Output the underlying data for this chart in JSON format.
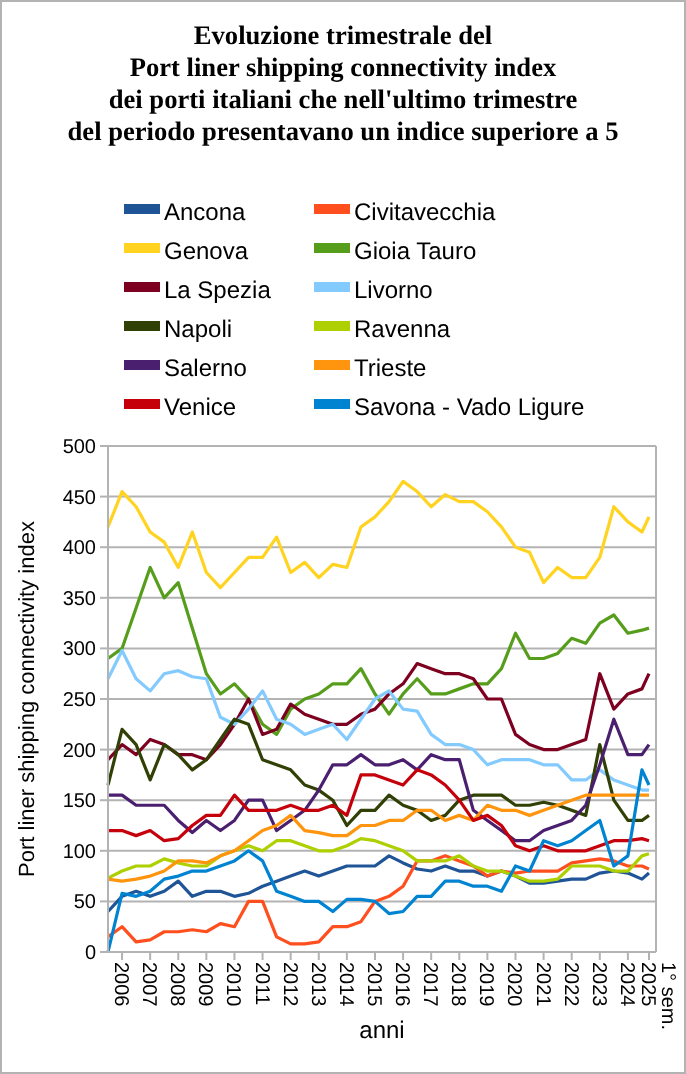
{
  "chart_data": {
    "type": "line",
    "title": "Evoluzione trimestrale del\nPort liner shipping connectivity index\ndei porti italiani che nell'ultimo trimestre\ndel periodo presentavano un indice superiore a 5",
    "xlabel": "anni",
    "ylabel": "Port liner shipping connectivity index",
    "x": [
      2006,
      2006.5,
      2007,
      2007.5,
      2008,
      2008.5,
      2009,
      2009.5,
      2010,
      2010.5,
      2011,
      2011.5,
      2012,
      2012.5,
      2013,
      2013.5,
      2014,
      2014.5,
      2015,
      2015.5,
      2016,
      2016.5,
      2017,
      2017.5,
      2018,
      2018.5,
      2019,
      2019.5,
      2020,
      2020.5,
      2021,
      2021.5,
      2022,
      2022.5,
      2023,
      2023.5,
      2024,
      2024.5,
      2025,
      2025.25
    ],
    "xlim": [
      2006,
      2025.5
    ],
    "xticks": [
      {
        "value": 2006.5,
        "label": "2006"
      },
      {
        "value": 2007.5,
        "label": "2007"
      },
      {
        "value": 2008.5,
        "label": "2008"
      },
      {
        "value": 2009.5,
        "label": "2009"
      },
      {
        "value": 2010.5,
        "label": "2010"
      },
      {
        "value": 2011.5,
        "label": "2011"
      },
      {
        "value": 2012.5,
        "label": "2012"
      },
      {
        "value": 2013.5,
        "label": "2013"
      },
      {
        "value": 2014.5,
        "label": "2014"
      },
      {
        "value": 2015.5,
        "label": "2015"
      },
      {
        "value": 2016.5,
        "label": "2016"
      },
      {
        "value": 2017.5,
        "label": "2017"
      },
      {
        "value": 2018.5,
        "label": "2018"
      },
      {
        "value": 2019.5,
        "label": "2019"
      },
      {
        "value": 2020.5,
        "label": "2020"
      },
      {
        "value": 2021.5,
        "label": "2021"
      },
      {
        "value": 2022.5,
        "label": "2022"
      },
      {
        "value": 2023.5,
        "label": "2023"
      },
      {
        "value": 2024.5,
        "label": "2024"
      },
      {
        "value": 2025.25,
        "label": "1° sem. 2025"
      }
    ],
    "ylim": [
      0,
      500
    ],
    "yticks": [
      0,
      50,
      100,
      150,
      200,
      250,
      300,
      350,
      400,
      450,
      500
    ],
    "grid": "y",
    "legend": "top",
    "series": [
      {
        "name": "Ancona",
        "color": "#1f5597",
        "values": [
          40,
          55,
          60,
          55,
          60,
          70,
          55,
          60,
          60,
          55,
          58,
          65,
          70,
          75,
          80,
          75,
          80,
          85,
          85,
          85,
          95,
          88,
          82,
          80,
          85,
          80,
          80,
          75,
          80,
          75,
          68,
          68,
          70,
          72,
          72,
          78,
          80,
          78,
          72,
          78
        ]
      },
      {
        "name": "Civitavecchia",
        "color": "#ff4f1f",
        "values": [
          15,
          25,
          10,
          12,
          20,
          20,
          22,
          20,
          28,
          25,
          50,
          50,
          15,
          8,
          8,
          10,
          25,
          25,
          30,
          50,
          55,
          65,
          90,
          90,
          95,
          90,
          85,
          75,
          80,
          78,
          80,
          80,
          80,
          88,
          90,
          92,
          90,
          85,
          85,
          82
        ]
      },
      {
        "name": "Genova",
        "color": "#ffd320",
        "values": [
          420,
          455,
          440,
          415,
          405,
          380,
          415,
          375,
          360,
          375,
          390,
          390,
          410,
          375,
          385,
          370,
          383,
          380,
          420,
          430,
          445,
          465,
          455,
          440,
          452,
          445,
          445,
          435,
          420,
          400,
          395,
          365,
          380,
          370,
          370,
          390,
          440,
          425,
          415,
          430
        ]
      },
      {
        "name": "Gioia Tauro",
        "color": "#579d1c",
        "values": [
          290,
          300,
          340,
          380,
          350,
          365,
          320,
          275,
          255,
          265,
          250,
          225,
          215,
          240,
          250,
          255,
          265,
          265,
          280,
          255,
          235,
          255,
          270,
          255,
          255,
          260,
          265,
          265,
          280,
          315,
          290,
          290,
          295,
          310,
          305,
          325,
          333,
          315,
          318,
          320
        ]
      },
      {
        "name": "La Spezia",
        "color": "#7e0021",
        "values": [
          190,
          205,
          195,
          210,
          205,
          195,
          195,
          190,
          205,
          225,
          250,
          215,
          220,
          245,
          235,
          230,
          225,
          225,
          235,
          240,
          255,
          265,
          285,
          280,
          275,
          275,
          270,
          250,
          250,
          215,
          205,
          200,
          200,
          205,
          210,
          275,
          240,
          255,
          260,
          275
        ]
      },
      {
        "name": "Livorno",
        "color": "#83caff",
        "values": [
          270,
          298,
          270,
          258,
          275,
          278,
          272,
          270,
          232,
          225,
          240,
          258,
          230,
          225,
          215,
          220,
          225,
          210,
          230,
          250,
          258,
          240,
          238,
          215,
          205,
          205,
          200,
          185,
          190,
          190,
          190,
          185,
          185,
          170,
          170,
          180,
          170,
          165,
          160,
          160
        ]
      },
      {
        "name": "Napoli",
        "color": "#314004",
        "values": [
          165,
          220,
          205,
          170,
          205,
          195,
          180,
          190,
          210,
          230,
          225,
          190,
          185,
          180,
          165,
          160,
          150,
          125,
          140,
          140,
          155,
          145,
          140,
          130,
          135,
          150,
          155,
          155,
          155,
          145,
          145,
          148,
          145,
          140,
          135,
          205,
          150,
          130,
          130,
          135
        ]
      },
      {
        "name": "Ravenna",
        "color": "#aecf00",
        "values": [
          73,
          80,
          85,
          85,
          92,
          88,
          85,
          85,
          95,
          100,
          105,
          100,
          110,
          110,
          105,
          100,
          100,
          105,
          112,
          110,
          105,
          100,
          90,
          90,
          90,
          95,
          85,
          80,
          80,
          75,
          70,
          70,
          72,
          85,
          85,
          85,
          80,
          80,
          95,
          97
        ]
      },
      {
        "name": "Salerno",
        "color": "#4b1f6f",
        "values": [
          155,
          155,
          145,
          145,
          145,
          130,
          118,
          130,
          120,
          130,
          150,
          150,
          120,
          130,
          140,
          160,
          185,
          185,
          195,
          185,
          185,
          190,
          180,
          195,
          190,
          190,
          140,
          130,
          120,
          110,
          110,
          120,
          125,
          130,
          145,
          185,
          230,
          195,
          195,
          205
        ]
      },
      {
        "name": "Trieste",
        "color": "#ff950e",
        "values": [
          72,
          70,
          72,
          75,
          80,
          90,
          90,
          88,
          95,
          100,
          110,
          120,
          125,
          135,
          120,
          118,
          115,
          115,
          125,
          125,
          130,
          130,
          140,
          140,
          130,
          135,
          130,
          145,
          140,
          140,
          135,
          140,
          145,
          150,
          155,
          155,
          155,
          155,
          155,
          155
        ]
      },
      {
        "name": "Venice",
        "color": "#c5000b",
        "values": [
          120,
          120,
          115,
          120,
          110,
          112,
          125,
          135,
          135,
          155,
          140,
          140,
          140,
          145,
          140,
          140,
          145,
          135,
          175,
          175,
          170,
          165,
          180,
          175,
          165,
          150,
          130,
          135,
          125,
          105,
          100,
          105,
          100,
          100,
          100,
          105,
          110,
          110,
          112,
          110
        ]
      },
      {
        "name": "Savona - Vado Ligure",
        "color": "#0084d1",
        "values": [
          0,
          58,
          55,
          60,
          72,
          75,
          80,
          80,
          85,
          90,
          100,
          90,
          60,
          55,
          50,
          50,
          40,
          52,
          52,
          50,
          38,
          40,
          55,
          55,
          70,
          70,
          65,
          65,
          60,
          85,
          80,
          110,
          105,
          110,
          120,
          130,
          85,
          95,
          180,
          165
        ]
      }
    ]
  }
}
